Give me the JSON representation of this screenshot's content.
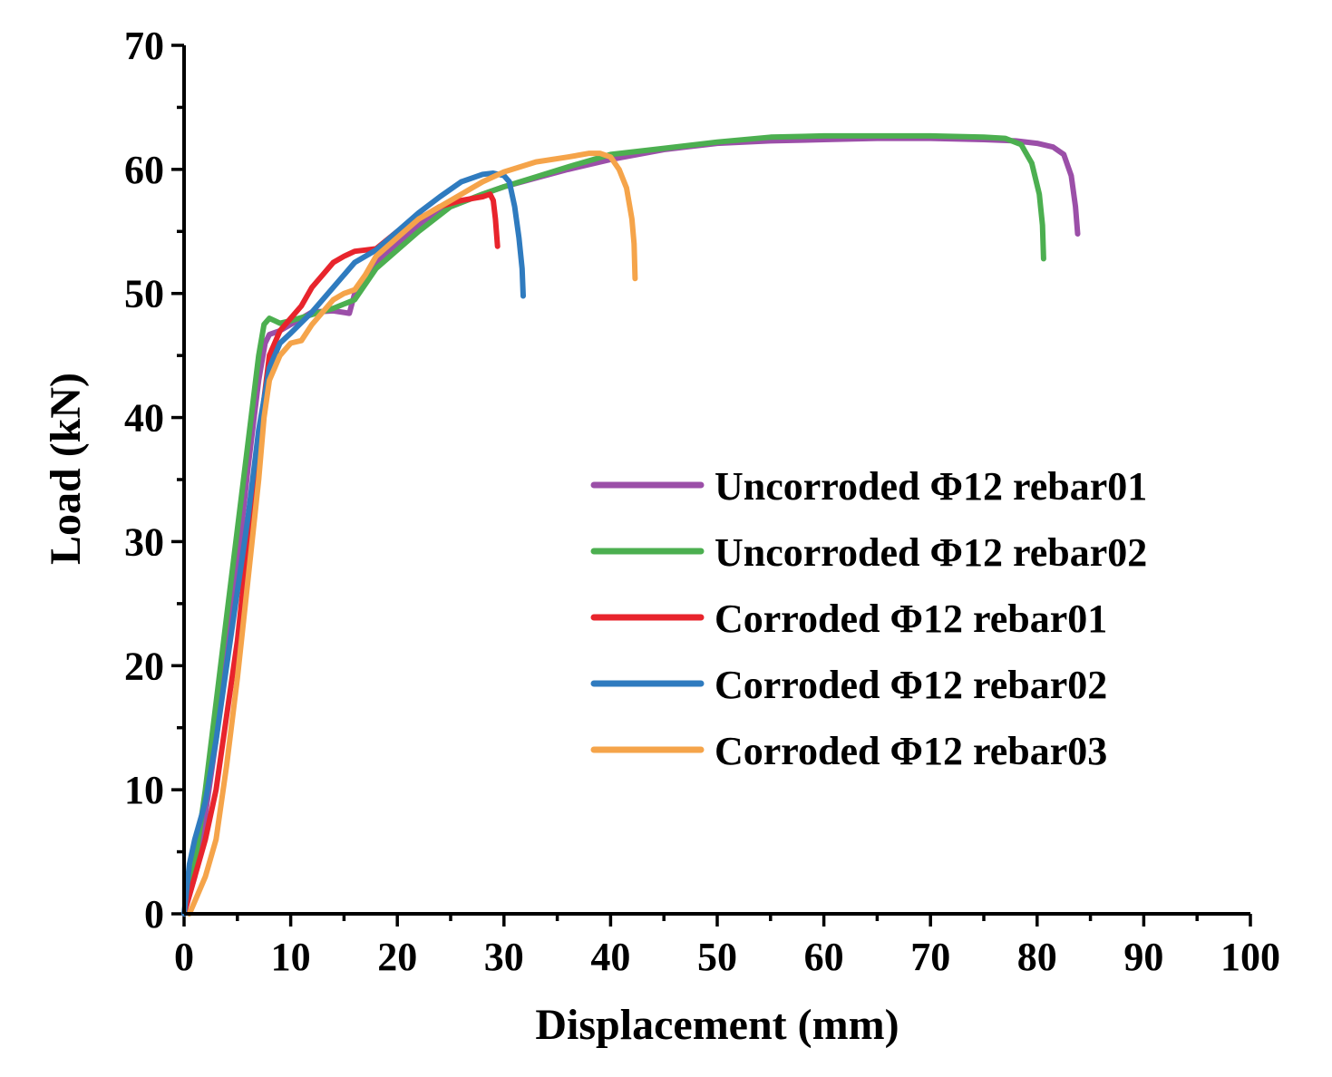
{
  "chart_data": {
    "type": "line",
    "title": "",
    "xlabel": "Displacement (mm)",
    "ylabel": "Load (kN)",
    "xlim": [
      0,
      100
    ],
    "ylim": [
      0,
      70
    ],
    "xticks": [
      0,
      10,
      20,
      30,
      40,
      50,
      60,
      70,
      80,
      90,
      100
    ],
    "yticks": [
      0,
      10,
      20,
      30,
      40,
      50,
      60,
      70
    ],
    "xtick_labels": [
      "0",
      "10",
      "20",
      "30",
      "40",
      "50",
      "60",
      "70",
      "80",
      "90",
      "100"
    ],
    "ytick_labels": [
      "0",
      "10",
      "20",
      "30",
      "40",
      "50",
      "60",
      "70"
    ],
    "grid": false,
    "legend_position": "right",
    "series": [
      {
        "name": "Uncorroded Φ12 rebar01",
        "color": "#9B4FA8",
        "x": [
          0,
          1,
          2,
          3,
          4,
          5,
          6,
          7,
          7.6,
          8,
          9,
          10,
          11,
          12,
          14,
          15.5,
          16,
          18,
          20,
          22,
          25,
          28,
          30,
          33,
          36,
          40,
          45,
          50,
          55,
          60,
          65,
          70,
          75,
          78,
          80,
          81.5,
          82.5,
          83.2,
          83.6,
          83.8
        ],
        "y": [
          0,
          3,
          8,
          14,
          21,
          28,
          36,
          43,
          46,
          46.7,
          47,
          47.5,
          48,
          48.5,
          48.6,
          48.4,
          50,
          52.5,
          54,
          55.5,
          57,
          58,
          58.6,
          59.3,
          60,
          60.8,
          61.6,
          62.1,
          62.3,
          62.4,
          62.5,
          62.5,
          62.4,
          62.3,
          62.1,
          61.8,
          61.2,
          59.5,
          57,
          54.8
        ]
      },
      {
        "name": "Uncorroded Φ12 rebar02",
        "color": "#4CAF50",
        "x": [
          0,
          1,
          2,
          3,
          4,
          5,
          6,
          7,
          7.5,
          8,
          8.5,
          9,
          10,
          12,
          14,
          16,
          18,
          20,
          22,
          25,
          28,
          30,
          33,
          36,
          40,
          45,
          50,
          55,
          60,
          65,
          70,
          75,
          77,
          78.5,
          79.5,
          80.2,
          80.5,
          80.6
        ],
        "y": [
          0,
          4,
          10,
          17,
          24,
          31,
          38,
          45,
          47.5,
          48,
          47.8,
          47.6,
          47.8,
          48.3,
          48.8,
          49.5,
          52,
          53.5,
          55,
          57,
          58,
          58.6,
          59.4,
          60.2,
          61.2,
          61.7,
          62.2,
          62.6,
          62.7,
          62.7,
          62.7,
          62.6,
          62.5,
          62,
          60.5,
          58,
          55.5,
          52.8
        ]
      },
      {
        "name": "Corroded Φ12 rebar01",
        "color": "#E8242C",
        "x": [
          0,
          1,
          2,
          3,
          4,
          5,
          6,
          7,
          8,
          9,
          10,
          11,
          12,
          13,
          14,
          15,
          16,
          17,
          18,
          20,
          22,
          24,
          26,
          28,
          28.7,
          29,
          29.2,
          29.4
        ],
        "y": [
          0,
          3,
          6,
          10,
          16,
          22,
          30,
          38,
          45,
          47,
          48,
          49,
          50.5,
          51.5,
          52.5,
          53,
          53.4,
          53.5,
          53.6,
          55,
          56,
          57,
          57.5,
          57.8,
          58,
          57.5,
          56,
          53.8
        ]
      },
      {
        "name": "Corroded Φ12 rebar02",
        "color": "#2F7BBF",
        "x": [
          0,
          0.5,
          1,
          2,
          3,
          4,
          5,
          6,
          7,
          8,
          9,
          10,
          12,
          14,
          16,
          18,
          20,
          22,
          24,
          26,
          28,
          29,
          30,
          30.5,
          31,
          31.4,
          31.7,
          31.8
        ],
        "y": [
          0,
          4,
          6,
          9,
          14,
          20,
          26,
          32,
          39,
          44,
          46,
          46.8,
          48.5,
          50.5,
          52.5,
          53.5,
          55,
          56.5,
          57.8,
          59,
          59.6,
          59.7,
          59.5,
          59,
          57,
          54.5,
          52,
          49.8
        ]
      },
      {
        "name": "Corroded Φ12 rebar03",
        "color": "#F5A44A",
        "x": [
          0.5,
          1,
          2,
          3,
          4,
          5,
          6,
          7,
          7.5,
          8,
          9,
          10,
          11,
          12,
          13,
          14,
          15,
          16,
          17,
          18,
          20,
          22,
          25,
          28,
          30,
          33,
          36,
          38,
          39,
          40,
          40.8,
          41.5,
          42,
          42.2,
          42.3
        ],
        "y": [
          0,
          1,
          3,
          6,
          12,
          19,
          27,
          35,
          40,
          43,
          45,
          46,
          46.2,
          47.5,
          48.5,
          49.5,
          50,
          50.3,
          51.5,
          53,
          54.5,
          56,
          57.5,
          59,
          59.8,
          60.6,
          61,
          61.3,
          61.3,
          61,
          60,
          58.5,
          56,
          54,
          51.2
        ]
      }
    ]
  }
}
